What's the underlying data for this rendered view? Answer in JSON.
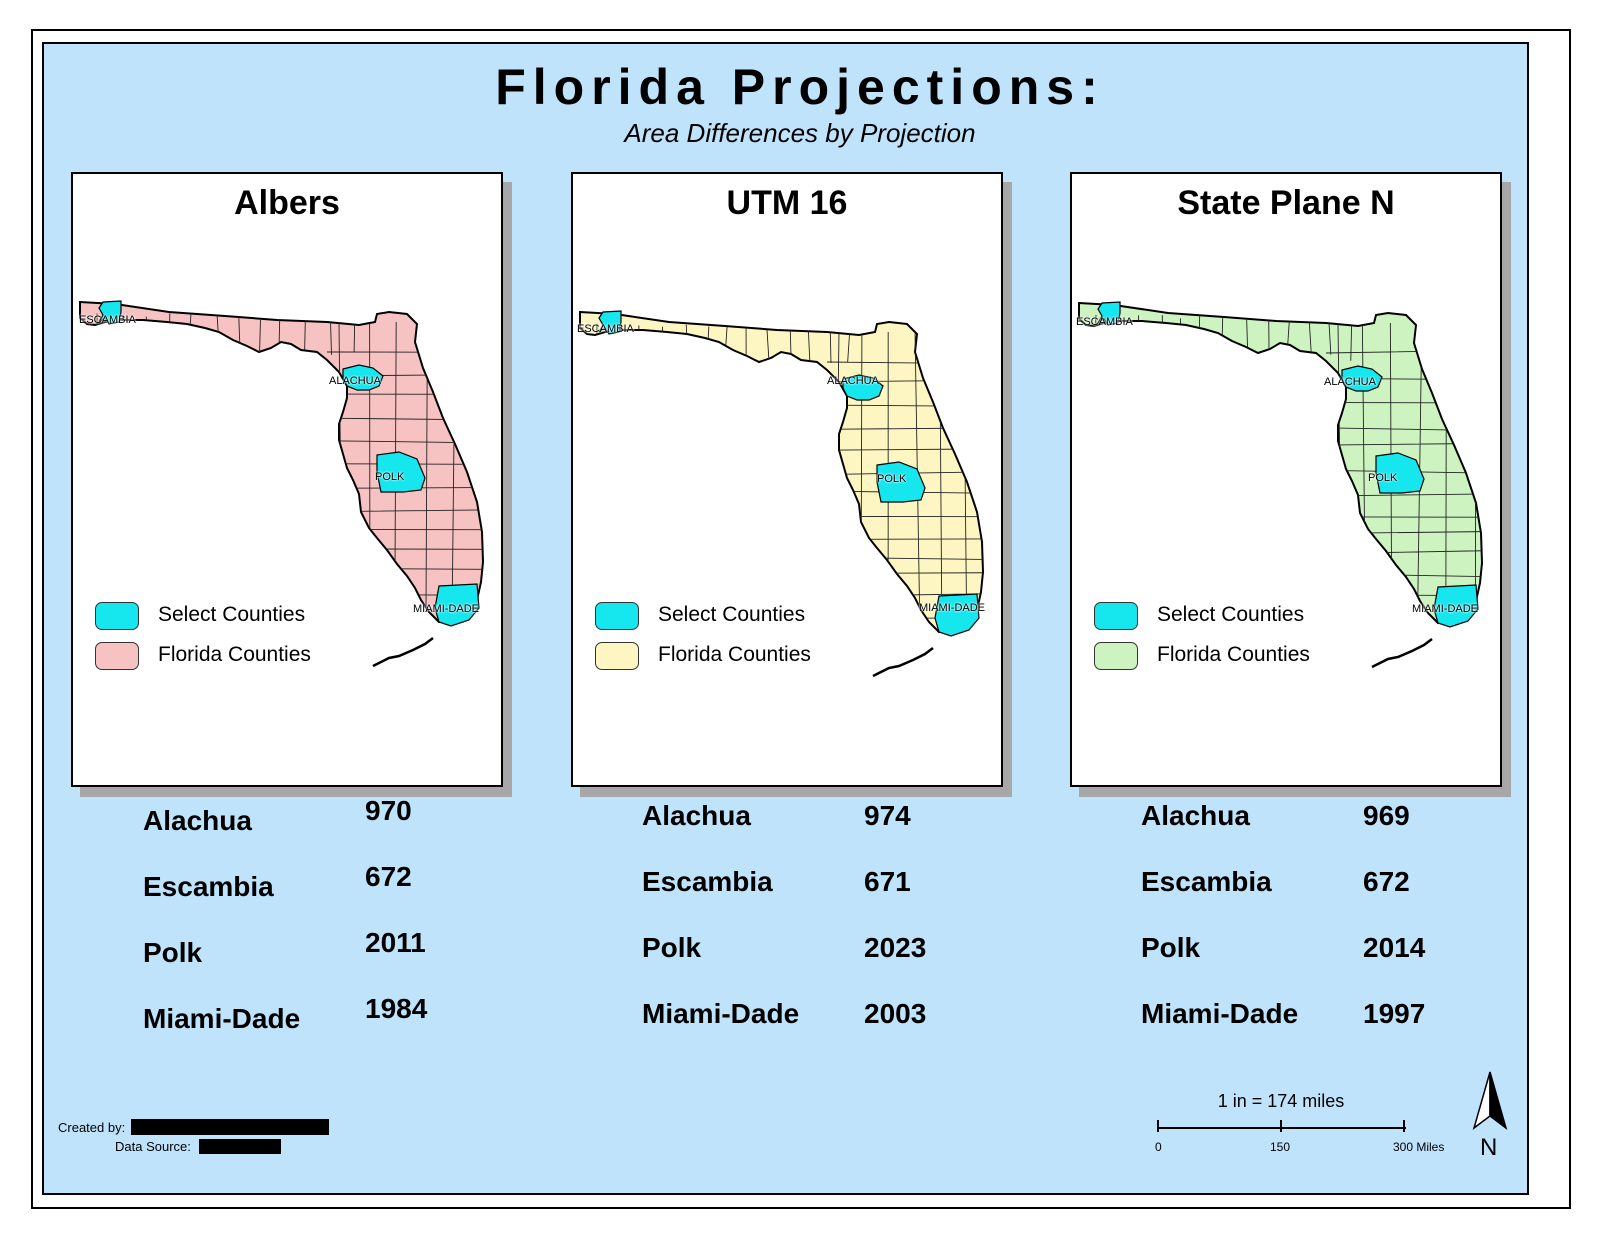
{
  "title": "Florida Projections:",
  "subtitle": "Area Differences by Projection",
  "colors": {
    "background": "#bfe3fb",
    "select_counties": "#16e6ee",
    "albers": "#f6c2c2",
    "utm": "#fdf6c3",
    "state_plane": "#cdf3c1"
  },
  "panels": [
    {
      "title": "Albers",
      "fill": "#f6c2c2",
      "labels": {
        "escambia": "ESCAMBIA",
        "alachua": "ALACHUA",
        "polk": "POLK",
        "miami": "MIAMI-DADE"
      },
      "legend": {
        "select": "Select Counties",
        "florida": "Florida Counties"
      },
      "stats": [
        {
          "name": "Alachua",
          "value": "970"
        },
        {
          "name": "Escambia",
          "value": "672"
        },
        {
          "name": "Polk",
          "value": "2011"
        },
        {
          "name": "Miami-Dade",
          "value": "1984"
        }
      ]
    },
    {
      "title": "UTM 16",
      "fill": "#fdf6c3",
      "labels": {
        "escambia": "ESCAMBIA",
        "alachua": "ALACHUA",
        "polk": "POLK",
        "miami": "MIAMI-DADE"
      },
      "legend": {
        "select": "Select Counties",
        "florida": "Florida Counties"
      },
      "stats": [
        {
          "name": "Alachua",
          "value": "974"
        },
        {
          "name": "Escambia",
          "value": "671"
        },
        {
          "name": "Polk",
          "value": "2023"
        },
        {
          "name": "Miami-Dade",
          "value": "2003"
        }
      ]
    },
    {
      "title": "State Plane N",
      "fill": "#cdf3c1",
      "labels": {
        "escambia": "ESCAMBIA",
        "alachua": "ALACHUA",
        "polk": "POLK",
        "miami": "MIAMI-DADE"
      },
      "legend": {
        "select": "Select Counties",
        "florida": "Florida Counties"
      },
      "stats": [
        {
          "name": "Alachua",
          "value": "969"
        },
        {
          "name": "Escambia",
          "value": "672"
        },
        {
          "name": "Polk",
          "value": "2014"
        },
        {
          "name": "Miami-Dade",
          "value": "1997"
        }
      ]
    }
  ],
  "credits": {
    "created_by": "Created by:",
    "data_source": "Data Source:"
  },
  "scale": {
    "text": "1 in = 174 miles",
    "ticks": [
      "0",
      "150",
      "300 Miles"
    ]
  },
  "north": {
    "label": "N",
    "icon": "north-arrow-icon"
  }
}
